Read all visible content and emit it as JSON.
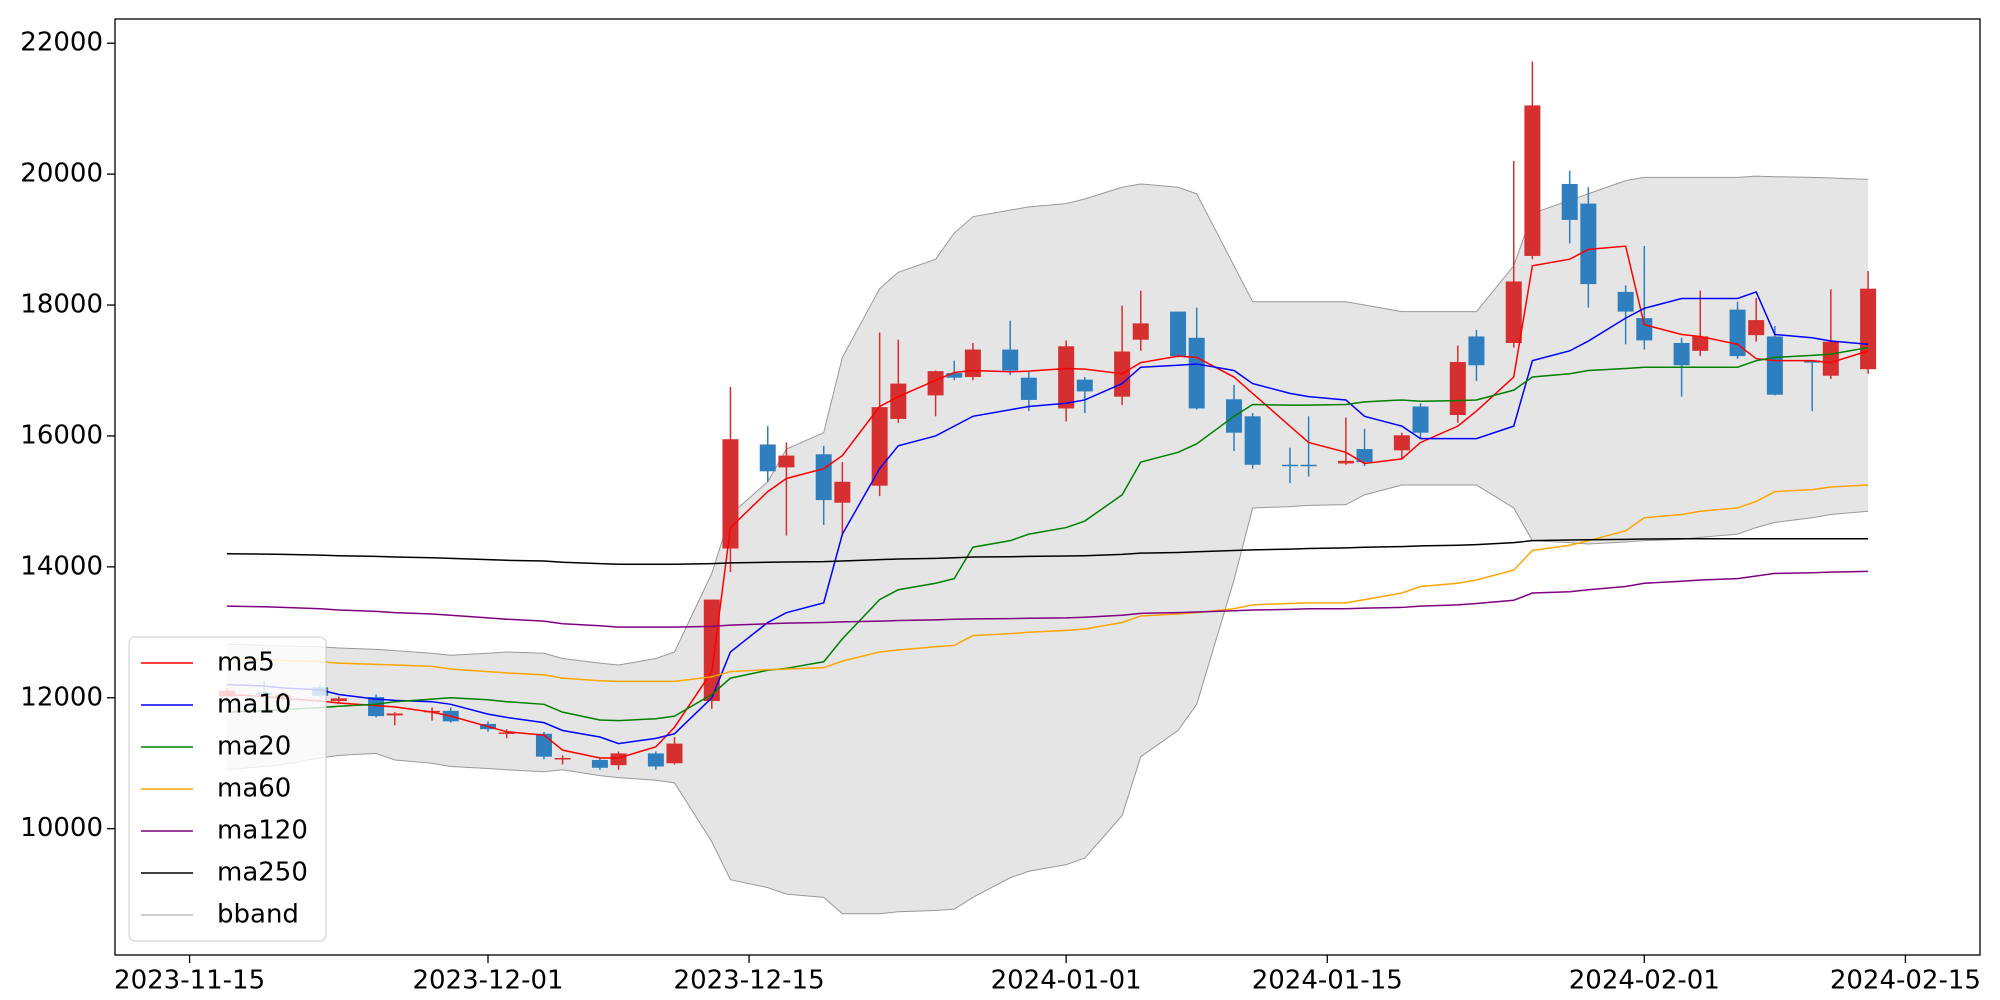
{
  "chart_data": {
    "type": "candlestick",
    "x": [
      "2023-11-17",
      "2023-11-19",
      "2023-11-20",
      "2023-11-22",
      "2023-11-23",
      "2023-11-25",
      "2023-11-26",
      "2023-11-28",
      "2023-11-29",
      "2023-12-01",
      "2023-12-02",
      "2023-12-04",
      "2023-12-05",
      "2023-12-07",
      "2023-12-08",
      "2023-12-10",
      "2023-12-11",
      "2023-12-13",
      "2023-12-14",
      "2023-12-16",
      "2023-12-17",
      "2023-12-19",
      "2023-12-20",
      "2023-12-22",
      "2023-12-23",
      "2023-12-25",
      "2023-12-26",
      "2023-12-27",
      "2023-12-29",
      "2023-12-30",
      "2024-01-01",
      "2024-01-02",
      "2024-01-04",
      "2024-01-05",
      "2024-01-07",
      "2024-01-08",
      "2024-01-10",
      "2024-01-11",
      "2024-01-13",
      "2024-01-14",
      "2024-01-16",
      "2024-01-17",
      "2024-01-19",
      "2024-01-20",
      "2024-01-22",
      "2024-01-23",
      "2024-01-25",
      "2024-01-26",
      "2024-01-28",
      "2024-01-29",
      "2024-01-31",
      "2024-02-01",
      "2024-02-03",
      "2024-02-04",
      "2024-02-06",
      "2024-02-07",
      "2024-02-08",
      "2024-02-10",
      "2024-02-11",
      "2024-02-13"
    ],
    "open": [
      12020,
      12080,
      12000,
      12160,
      11950,
      12010,
      11730,
      11780,
      11800,
      11600,
      11450,
      11450,
      11060,
      11050,
      10970,
      11150,
      11000,
      11950,
      14280,
      15870,
      15520,
      15720,
      14980,
      15240,
      16260,
      16620,
      16960,
      16900,
      17320,
      16890,
      16420,
      16860,
      16600,
      17470,
      17900,
      17500,
      16560,
      16300,
      15560,
      15560,
      15580,
      15800,
      15780,
      16450,
      16320,
      17520,
      17420,
      18750,
      19850,
      19550,
      18200,
      17800,
      17420,
      17300,
      17930,
      17540,
      17520,
      17150,
      16920,
      17020
    ],
    "high": [
      12150,
      12250,
      12100,
      12200,
      12020,
      12050,
      11780,
      11850,
      11850,
      11640,
      11520,
      11480,
      11120,
      11080,
      11180,
      11180,
      11400,
      13500,
      16750,
      16150,
      15900,
      15850,
      15600,
      17580,
      17470,
      17000,
      17150,
      17420,
      17760,
      16980,
      17460,
      16900,
      17990,
      18220,
      17900,
      17960,
      16780,
      16350,
      15820,
      16300,
      16280,
      16110,
      16050,
      16500,
      17380,
      17620,
      20200,
      21720,
      20050,
      19800,
      18300,
      18900,
      17500,
      18220,
      18050,
      18110,
      17680,
      17150,
      18240,
      18520
    ],
    "low": [
      11990,
      12000,
      11950,
      11990,
      11920,
      11700,
      11580,
      11650,
      11620,
      11480,
      11380,
      11060,
      10980,
      10900,
      10900,
      10900,
      10980,
      11830,
      13920,
      15300,
      14480,
      14640,
      14480,
      15080,
      16200,
      16300,
      16850,
      16850,
      16930,
      16380,
      16220,
      16350,
      16470,
      17300,
      17200,
      16400,
      15770,
      15500,
      15280,
      15380,
      15560,
      15540,
      15650,
      15960,
      16200,
      16840,
      17350,
      18700,
      18940,
      17960,
      17400,
      17320,
      16600,
      17220,
      17180,
      17440,
      16620,
      16380,
      16870,
      16950
    ],
    "close": [
      12110,
      12040,
      12040,
      12030,
      11990,
      11720,
      11760,
      11800,
      11640,
      11520,
      11470,
      11100,
      11080,
      10930,
      11150,
      10950,
      11300,
      13500,
      15950,
      15460,
      15700,
      15020,
      15300,
      16440,
      16800,
      16990,
      16890,
      17320,
      17000,
      16550,
      17370,
      16680,
      17290,
      17720,
      17220,
      16420,
      16050,
      15560,
      15540,
      15540,
      15620,
      15600,
      16010,
      16050,
      17130,
      17080,
      18360,
      21050,
      19300,
      18320,
      17900,
      17460,
      17080,
      17520,
      17220,
      17770,
      16630,
      17120,
      17440,
      18250
    ],
    "up_color": "#d62f2f",
    "down_color": "#2f7fbf",
    "series": [
      {
        "name": "ma5",
        "color": "#ff0000",
        "values": [
          12050,
          12020,
          11990,
          11950,
          11920,
          11880,
          11860,
          11780,
          11720,
          11560,
          11480,
          11430,
          11200,
          11080,
          11080,
          11250,
          11550,
          12400,
          14600,
          15150,
          15350,
          15500,
          15700,
          16450,
          16600,
          16850,
          16970,
          17000,
          16980,
          16990,
          17030,
          17020,
          16950,
          17120,
          17220,
          17200,
          16900,
          16650,
          16150,
          15900,
          15750,
          15580,
          15650,
          15900,
          16150,
          16380,
          16900,
          18600,
          18700,
          18850,
          18900,
          17700,
          17550,
          17520,
          17400,
          17180,
          17150,
          17150,
          17120,
          17300
        ]
      },
      {
        "name": "ma10",
        "color": "#0000ff",
        "values": [
          12200,
          12180,
          12150,
          12120,
          12050,
          11980,
          11960,
          11940,
          11900,
          11750,
          11700,
          11620,
          11500,
          11400,
          11300,
          11380,
          11450,
          12000,
          12700,
          13150,
          13300,
          13450,
          14500,
          15500,
          15850,
          16000,
          16150,
          16300,
          16400,
          16450,
          16500,
          16550,
          16800,
          17050,
          17080,
          17100,
          17000,
          16800,
          16650,
          16600,
          16550,
          16300,
          16150,
          15960,
          15960,
          15960,
          16150,
          17150,
          17300,
          17450,
          17800,
          17950,
          18100,
          18100,
          18100,
          18200,
          17550,
          17500,
          17450,
          17400
        ]
      },
      {
        "name": "ma20",
        "color": "#008000",
        "values": [
          11780,
          11800,
          11820,
          11850,
          11870,
          11900,
          11940,
          11980,
          12000,
          11970,
          11940,
          11900,
          11780,
          11660,
          11650,
          11680,
          11720,
          12050,
          12300,
          12420,
          12450,
          12550,
          12900,
          13500,
          13650,
          13750,
          13820,
          14300,
          14400,
          14500,
          14600,
          14700,
          15100,
          15600,
          15750,
          15880,
          16300,
          16480,
          16470,
          16470,
          16480,
          16520,
          16550,
          16530,
          16540,
          16550,
          16700,
          16900,
          16950,
          17000,
          17030,
          17050,
          17050,
          17050,
          17050,
          17150,
          17200,
          17230,
          17250,
          17350
        ]
      },
      {
        "name": "ma60",
        "color": "#ffa500",
        "values": [
          12600,
          12580,
          12570,
          12550,
          12530,
          12510,
          12500,
          12480,
          12440,
          12400,
          12380,
          12350,
          12300,
          12260,
          12250,
          12250,
          12250,
          12320,
          12400,
          12430,
          12440,
          12460,
          12560,
          12700,
          12730,
          12780,
          12800,
          12950,
          12980,
          13000,
          13030,
          13050,
          13150,
          13250,
          13280,
          13300,
          13360,
          13420,
          13440,
          13450,
          13450,
          13500,
          13600,
          13700,
          13750,
          13800,
          13950,
          14250,
          14330,
          14400,
          14550,
          14750,
          14800,
          14850,
          14900,
          15000,
          15150,
          15180,
          15220,
          15250
        ]
      },
      {
        "name": "ma120",
        "color": "#800080",
        "values": [
          13400,
          13390,
          13380,
          13360,
          13340,
          13320,
          13300,
          13280,
          13260,
          13220,
          13200,
          13170,
          13130,
          13100,
          13080,
          13080,
          13080,
          13090,
          13110,
          13130,
          13140,
          13150,
          13160,
          13170,
          13180,
          13190,
          13200,
          13205,
          13210,
          13215,
          13220,
          13230,
          13260,
          13290,
          13300,
          13310,
          13330,
          13340,
          13350,
          13360,
          13360,
          13370,
          13380,
          13400,
          13420,
          13440,
          13490,
          13600,
          13620,
          13650,
          13700,
          13750,
          13780,
          13800,
          13820,
          13860,
          13900,
          13910,
          13920,
          13930
        ]
      },
      {
        "name": "ma250",
        "color": "#000000",
        "values": [
          14200,
          14195,
          14190,
          14180,
          14170,
          14160,
          14150,
          14140,
          14130,
          14110,
          14100,
          14090,
          14070,
          14050,
          14040,
          14040,
          14040,
          14050,
          14060,
          14070,
          14075,
          14080,
          14090,
          14110,
          14120,
          14130,
          14140,
          14150,
          14155,
          14160,
          14165,
          14170,
          14190,
          14210,
          14220,
          14230,
          14250,
          14260,
          14270,
          14280,
          14290,
          14300,
          14310,
          14320,
          14330,
          14340,
          14370,
          14400,
          14410,
          14415,
          14420,
          14425,
          14430,
          14430,
          14430,
          14430,
          14430,
          14430,
          14430,
          14430
        ]
      }
    ],
    "band": {
      "name": "bband",
      "color": "#999999",
      "fill": "#e5e5e5",
      "upper": [
        12820,
        12800,
        12790,
        12780,
        12760,
        12740,
        12720,
        12680,
        12650,
        12680,
        12700,
        12680,
        12600,
        12530,
        12500,
        12600,
        12700,
        13900,
        14800,
        15300,
        15800,
        16050,
        17200,
        18250,
        18500,
        18700,
        19100,
        19350,
        19450,
        19500,
        19550,
        19620,
        19800,
        19850,
        19800,
        19700,
        18600,
        18050,
        18050,
        18050,
        18050,
        18000,
        17900,
        17900,
        17900,
        17900,
        18600,
        19400,
        19600,
        19700,
        19900,
        19950,
        19950,
        19950,
        19950,
        19970,
        19960,
        19950,
        19940,
        19920
      ],
      "lower": [
        10900,
        10950,
        10980,
        11080,
        11120,
        11150,
        11050,
        11000,
        10950,
        10920,
        10900,
        10870,
        10900,
        10810,
        10780,
        10740,
        10700,
        9800,
        9220,
        9100,
        9000,
        8950,
        8700,
        8700,
        8730,
        8750,
        8770,
        8950,
        9250,
        9350,
        9450,
        9550,
        10200,
        11100,
        11500,
        11900,
        13800,
        14900,
        14920,
        14940,
        14950,
        15100,
        15250,
        15250,
        15250,
        15250,
        14900,
        14400,
        14370,
        14350,
        14380,
        14400,
        14420,
        14450,
        14500,
        14600,
        14680,
        14750,
        14800,
        14850
      ]
    },
    "xlim": [
      "2023-11-11",
      "2024-02-19"
    ],
    "xticks": [
      "2023-11-15",
      "2023-12-01",
      "2023-12-15",
      "2024-01-01",
      "2024-01-15",
      "2024-02-01",
      "2024-02-15"
    ],
    "ylim": [
      8070,
      22370
    ],
    "yticks": [
      10000,
      12000,
      14000,
      16000,
      18000,
      20000,
      22000
    ],
    "legend": "lower left"
  }
}
